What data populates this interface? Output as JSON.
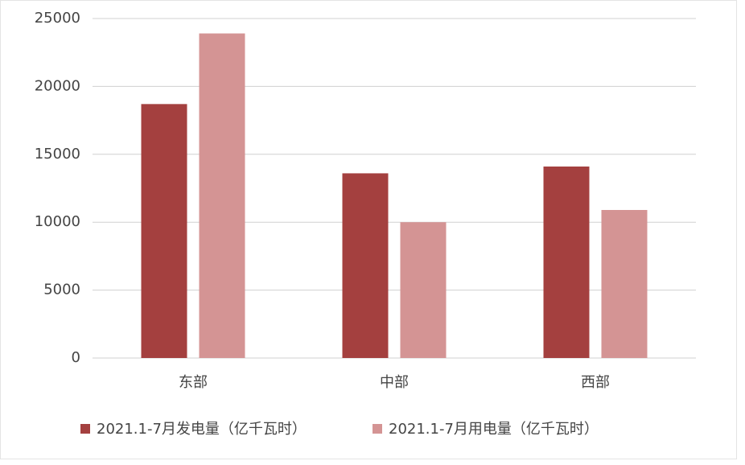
{
  "chart_data": {
    "type": "bar",
    "categories": [
      "东部",
      "中部",
      "西部"
    ],
    "series": [
      {
        "name": "2021.1-7月发电量（亿千瓦时）",
        "color": "#a4403f",
        "values": [
          18700,
          13600,
          14100
        ]
      },
      {
        "name": "2021.1-7月用电量（亿千瓦时）",
        "color": "#d49494",
        "values": [
          23900,
          10000,
          10900
        ]
      }
    ],
    "ylim": [
      0,
      25000
    ],
    "yticks": [
      0,
      5000,
      10000,
      15000,
      20000,
      25000
    ],
    "grid": true,
    "legend": "bottom"
  }
}
